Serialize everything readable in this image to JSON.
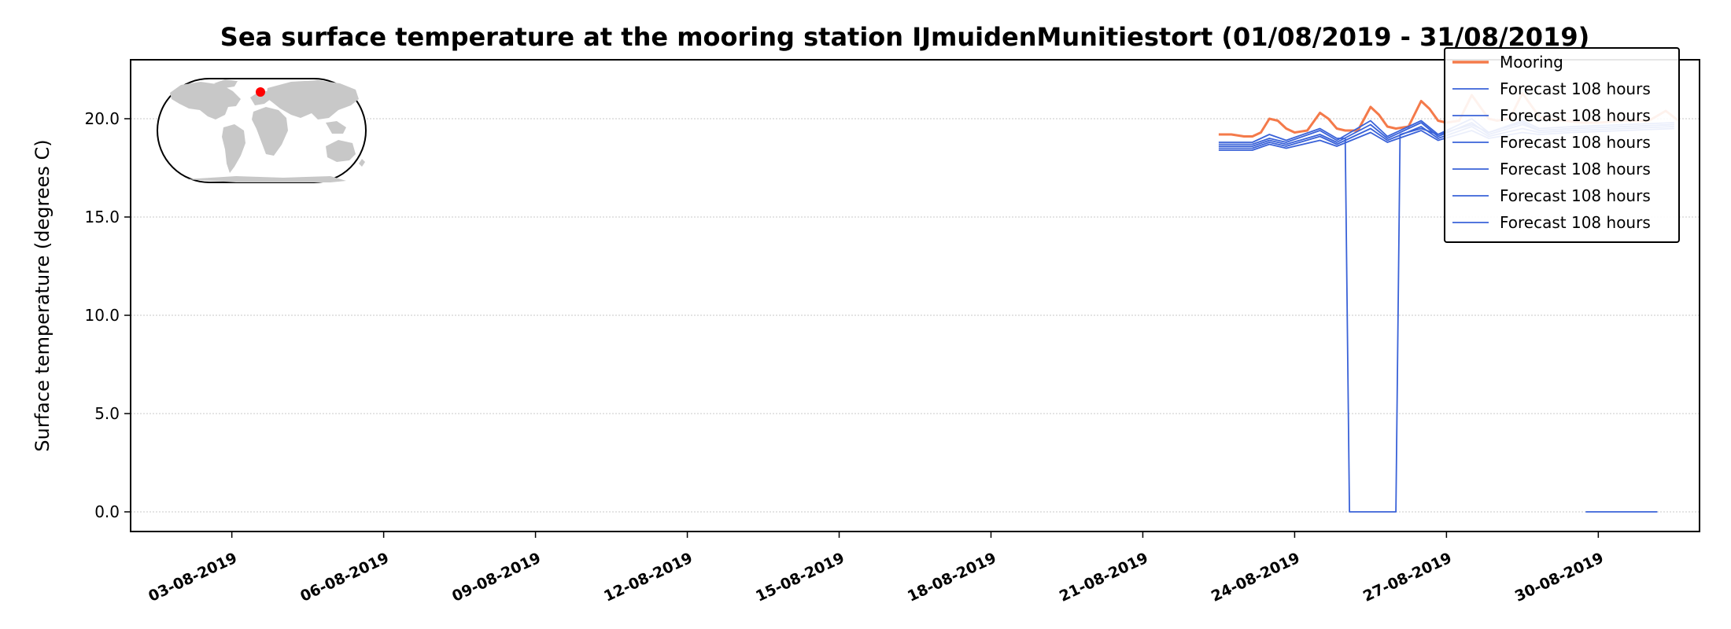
{
  "chart_data": {
    "type": "line",
    "title": "Sea surface temperature at the mooring station IJmuidenMunitiestort (01/08/2019 - 31/08/2019)",
    "xlabel": "",
    "ylabel": "Surface temperature (degrees C)",
    "xlim": [
      "2019-08-01T00:00",
      "2019-09-01T00:00"
    ],
    "ylim": [
      -1.0,
      23.0
    ],
    "x_ticks": [
      "03-08-2019",
      "06-08-2019",
      "09-08-2019",
      "12-08-2019",
      "15-08-2019",
      "18-08-2019",
      "21-08-2019",
      "24-08-2019",
      "27-08-2019",
      "30-08-2019"
    ],
    "y_ticks": [
      "0.0",
      "5.0",
      "10.0",
      "15.0",
      "20.0"
    ],
    "grid": "horizontal dotted",
    "legend_position": "top-right",
    "colors": {
      "mooring": "#f47a4a",
      "forecast": "#3a62d8"
    },
    "inset": "world map with red dot marking station location",
    "series": [
      {
        "name": "Mooring",
        "points": [
          [
            "2019-08-22T12:00",
            19.2
          ],
          [
            "2019-08-22T18:00",
            19.2
          ],
          [
            "2019-08-23T00:00",
            19.1
          ],
          [
            "2019-08-23T04:00",
            19.1
          ],
          [
            "2019-08-23T08:00",
            19.3
          ],
          [
            "2019-08-23T12:00",
            20.0
          ],
          [
            "2019-08-23T16:00",
            19.9
          ],
          [
            "2019-08-23T20:00",
            19.5
          ],
          [
            "2019-08-24T00:00",
            19.3
          ],
          [
            "2019-08-24T06:00",
            19.4
          ],
          [
            "2019-08-24T12:00",
            20.3
          ],
          [
            "2019-08-24T16:00",
            20.0
          ],
          [
            "2019-08-24T20:00",
            19.5
          ],
          [
            "2019-08-25T00:00",
            19.4
          ],
          [
            "2019-08-25T06:00",
            19.4
          ],
          [
            "2019-08-25T12:00",
            20.6
          ],
          [
            "2019-08-25T16:00",
            20.2
          ],
          [
            "2019-08-25T20:00",
            19.6
          ],
          [
            "2019-08-26T00:00",
            19.5
          ],
          [
            "2019-08-26T06:00",
            19.6
          ],
          [
            "2019-08-26T12:00",
            20.9
          ],
          [
            "2019-08-26T16:00",
            20.5
          ],
          [
            "2019-08-26T20:00",
            19.9
          ],
          [
            "2019-08-27T00:00",
            19.8
          ],
          [
            "2019-08-27T06:00",
            19.9
          ],
          [
            "2019-08-27T12:00",
            21.2
          ],
          [
            "2019-08-27T16:00",
            20.6
          ],
          [
            "2019-08-27T20:00",
            20.0
          ],
          [
            "2019-08-28T00:00",
            19.9
          ],
          [
            "2019-08-28T06:00",
            20.0
          ],
          [
            "2019-08-28T12:00",
            21.3
          ],
          [
            "2019-08-28T16:00",
            20.7
          ],
          [
            "2019-08-28T20:00",
            20.1
          ],
          [
            "2019-08-29T00:00",
            20.0
          ],
          [
            "2019-08-29T08:00",
            19.9
          ],
          [
            "2019-08-29T16:00",
            19.8
          ],
          [
            "2019-08-30T00:00",
            19.8
          ],
          [
            "2019-08-30T12:00",
            19.9
          ],
          [
            "2019-08-31T00:00",
            19.9
          ],
          [
            "2019-08-31T08:00",
            20.4
          ],
          [
            "2019-08-31T14:00",
            19.9
          ]
        ]
      },
      {
        "name": "Forecast 108 hours",
        "points": [
          [
            "2019-08-22T12:00",
            18.8
          ],
          [
            "2019-08-23T04:00",
            18.8
          ],
          [
            "2019-08-23T12:00",
            19.2
          ],
          [
            "2019-08-23T20:00",
            18.9
          ],
          [
            "2019-08-24T12:00",
            19.5
          ],
          [
            "2019-08-24T20:00",
            19.0
          ],
          [
            "2019-08-25T00:00",
            19.0
          ],
          [
            "2019-08-25T02:00",
            0.0
          ],
          [
            "2019-08-26T00:00",
            0.0
          ],
          [
            "2019-08-26T02:00",
            19.2
          ],
          [
            "2019-08-26T12:00",
            19.5
          ],
          [
            "2019-08-26T20:00",
            19.2
          ],
          [
            "2019-08-27T12:00",
            19.7
          ],
          [
            "2019-08-27T20:00",
            19.3
          ],
          [
            "2019-08-28T12:00",
            19.8
          ],
          [
            "2019-08-28T20:00",
            19.4
          ],
          [
            "2019-08-29T12:00",
            19.5
          ],
          [
            "2019-08-30T12:00",
            19.6
          ],
          [
            "2019-08-31T12:00",
            19.7
          ]
        ]
      },
      {
        "name": "Forecast 108 hours",
        "points": [
          [
            "2019-08-22T12:00",
            18.7
          ],
          [
            "2019-08-23T04:00",
            18.7
          ],
          [
            "2019-08-23T12:00",
            19.0
          ],
          [
            "2019-08-23T20:00",
            18.8
          ],
          [
            "2019-08-24T12:00",
            19.4
          ],
          [
            "2019-08-24T20:00",
            18.9
          ],
          [
            "2019-08-25T12:00",
            19.9
          ],
          [
            "2019-08-25T20:00",
            19.1
          ],
          [
            "2019-08-26T12:00",
            19.9
          ],
          [
            "2019-08-26T20:00",
            19.2
          ],
          [
            "2019-08-27T12:00",
            20.0
          ],
          [
            "2019-08-27T20:00",
            19.3
          ],
          [
            "2019-08-28T12:00",
            19.9
          ],
          [
            "2019-08-28T20:00",
            19.5
          ],
          [
            "2019-08-29T12:00",
            19.6
          ],
          [
            "2019-08-30T12:00",
            19.7
          ],
          [
            "2019-08-31T12:00",
            19.8
          ]
        ]
      },
      {
        "name": "Forecast 108 hours",
        "points": [
          [
            "2019-08-22T12:00",
            18.6
          ],
          [
            "2019-08-23T04:00",
            18.6
          ],
          [
            "2019-08-23T12:00",
            18.9
          ],
          [
            "2019-08-23T20:00",
            18.7
          ],
          [
            "2019-08-24T12:00",
            19.2
          ],
          [
            "2019-08-24T20:00",
            18.8
          ],
          [
            "2019-08-25T12:00",
            19.7
          ],
          [
            "2019-08-25T20:00",
            19.0
          ],
          [
            "2019-08-26T12:00",
            19.8
          ],
          [
            "2019-08-26T20:00",
            19.1
          ],
          [
            "2019-08-27T12:00",
            19.8
          ],
          [
            "2019-08-27T20:00",
            19.2
          ],
          [
            "2019-08-28T12:00",
            19.7
          ],
          [
            "2019-08-28T20:00",
            19.4
          ],
          [
            "2019-08-29T12:00",
            19.5
          ],
          [
            "2019-08-30T12:00",
            19.6
          ],
          [
            "2019-08-31T12:00",
            19.7
          ]
        ]
      },
      {
        "name": "Forecast 108 hours",
        "points": [
          [
            "2019-08-22T12:00",
            18.5
          ],
          [
            "2019-08-23T04:00",
            18.5
          ],
          [
            "2019-08-23T12:00",
            18.8
          ],
          [
            "2019-08-23T20:00",
            18.6
          ],
          [
            "2019-08-24T12:00",
            19.1
          ],
          [
            "2019-08-24T20:00",
            18.7
          ],
          [
            "2019-08-25T12:00",
            19.5
          ],
          [
            "2019-08-25T20:00",
            18.9
          ],
          [
            "2019-08-26T12:00",
            19.6
          ],
          [
            "2019-08-26T20:00",
            19.0
          ],
          [
            "2019-08-27T12:00",
            19.6
          ],
          [
            "2019-08-27T20:00",
            19.1
          ],
          [
            "2019-08-28T12:00",
            19.5
          ],
          [
            "2019-08-28T20:00",
            19.3
          ],
          [
            "2019-08-29T12:00",
            19.4
          ],
          [
            "2019-08-30T12:00",
            19.5
          ],
          [
            "2019-08-31T12:00",
            19.6
          ]
        ]
      },
      {
        "name": "Forecast 108 hours",
        "points": [
          [
            "2019-08-22T12:00",
            18.4
          ],
          [
            "2019-08-23T04:00",
            18.4
          ],
          [
            "2019-08-23T12:00",
            18.7
          ],
          [
            "2019-08-23T20:00",
            18.5
          ],
          [
            "2019-08-24T12:00",
            18.9
          ],
          [
            "2019-08-24T20:00",
            18.6
          ],
          [
            "2019-08-25T12:00",
            19.3
          ],
          [
            "2019-08-25T20:00",
            18.8
          ],
          [
            "2019-08-26T12:00",
            19.4
          ],
          [
            "2019-08-26T20:00",
            18.9
          ],
          [
            "2019-08-27T12:00",
            19.4
          ],
          [
            "2019-08-27T20:00",
            19.0
          ],
          [
            "2019-08-28T12:00",
            19.3
          ],
          [
            "2019-08-28T20:00",
            19.2
          ],
          [
            "2019-08-29T12:00",
            19.3
          ],
          [
            "2019-08-30T12:00",
            19.4
          ],
          [
            "2019-08-31T12:00",
            19.5
          ]
        ]
      },
      {
        "name": "Forecast 108 hours",
        "points": [
          [
            "2019-08-29T18:00",
            0.0
          ],
          [
            "2019-08-30T06:00",
            0.0
          ],
          [
            "2019-08-30T12:00",
            0.0
          ],
          [
            "2019-08-30T18:00",
            0.0
          ],
          [
            "2019-08-31T00:00",
            0.0
          ],
          [
            "2019-08-31T04:00",
            0.0
          ]
        ]
      }
    ]
  }
}
